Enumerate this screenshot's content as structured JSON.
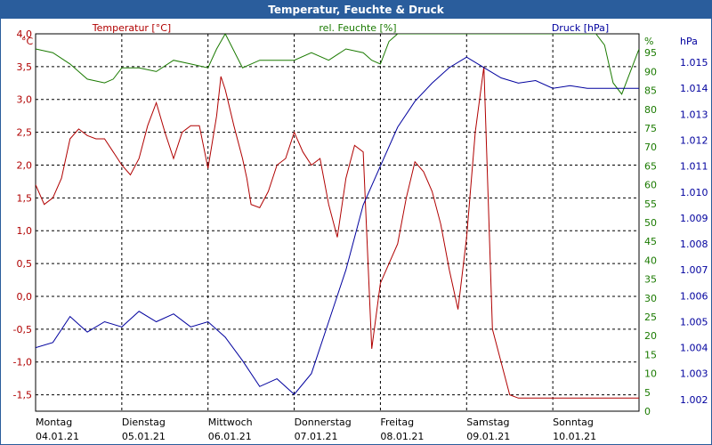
{
  "window": {
    "title": "Temperatur, Feuchte & Druck"
  },
  "colors": {
    "temperature": "#b00000",
    "humidity": "#1a7a00",
    "pressure": "#00009e",
    "titlebar": "#2a5d9c",
    "grid": "#000000"
  },
  "chart_data": {
    "type": "line",
    "title": "Temperatur, Feuchte & Druck",
    "x_ticks": [
      {
        "day": "Montag",
        "date": "04.01.21"
      },
      {
        "day": "Dienstag",
        "date": "05.01.21"
      },
      {
        "day": "Mittwoch",
        "date": "06.01.21"
      },
      {
        "day": "Donnerstag",
        "date": "07.01.21"
      },
      {
        "day": "Freitag",
        "date": "08.01.21"
      },
      {
        "day": "Samstag",
        "date": "09.01.21"
      },
      {
        "day": "Sonntag",
        "date": "10.01.21"
      }
    ],
    "xlim": [
      0,
      7
    ],
    "axes": {
      "temperature": {
        "label": "Temperatur [°C]",
        "unit": "°C",
        "ylim": [
          -1.75,
          4.0
        ],
        "ticks": [
          "4,0",
          "3,5",
          "3,0",
          "2,5",
          "2,0",
          "1,5",
          "1,0",
          "0,5",
          "0,0",
          "-0,5",
          "-1,0",
          "-1,5"
        ],
        "tick_values": [
          4.0,
          3.5,
          3.0,
          2.5,
          2.0,
          1.5,
          1.0,
          0.5,
          0.0,
          -0.5,
          -1.0,
          -1.5
        ]
      },
      "humidity": {
        "label": "rel. Feuchte [%]",
        "unit": "%",
        "ylim": [
          0,
          100
        ],
        "ticks": [
          "95",
          "90",
          "85",
          "80",
          "75",
          "70",
          "65",
          "60",
          "55",
          "50",
          "45",
          "40",
          "35",
          "30",
          "25",
          "20",
          "15",
          "10",
          "5",
          "0"
        ],
        "tick_values": [
          95,
          90,
          85,
          80,
          75,
          70,
          65,
          60,
          55,
          50,
          45,
          40,
          35,
          30,
          25,
          20,
          15,
          10,
          5,
          0
        ]
      },
      "pressure": {
        "label": "Druck [hPa]",
        "unit": "hPa",
        "ylim": [
          1001.55,
          1016.1
        ],
        "ticks": [
          "1.015",
          "1.014",
          "1.013",
          "1.012",
          "1.011",
          "1.010",
          "1.009",
          "1.008",
          "1.007",
          "1.006",
          "1.005",
          "1.004",
          "1.003",
          "1.002"
        ],
        "tick_values": [
          1015,
          1014,
          1013,
          1012,
          1011,
          1010,
          1009,
          1008,
          1007,
          1006,
          1005,
          1004,
          1003,
          1002
        ]
      }
    },
    "series": [
      {
        "name": "Temperatur [°C]",
        "axis": "temperature",
        "x": [
          0,
          0.1,
          0.2,
          0.3,
          0.4,
          0.5,
          0.6,
          0.7,
          0.8,
          0.9,
          1.0,
          1.1,
          1.2,
          1.3,
          1.4,
          1.5,
          1.6,
          1.7,
          1.8,
          1.9,
          2.0,
          2.1,
          2.15,
          2.2,
          2.3,
          2.4,
          2.45,
          2.5,
          2.6,
          2.7,
          2.8,
          2.9,
          3.0,
          3.1,
          3.2,
          3.3,
          3.4,
          3.5,
          3.6,
          3.7,
          3.8,
          3.9,
          4.0,
          4.1,
          4.2,
          4.3,
          4.4,
          4.5,
          4.6,
          4.7,
          4.8,
          4.9,
          5.0,
          5.1,
          5.2,
          5.3,
          5.4,
          5.5,
          5.6,
          5.7,
          5.8,
          5.9,
          6.0,
          6.1,
          6.2,
          6.3,
          6.4,
          6.5,
          6.6,
          6.7,
          6.8,
          6.9,
          7.0
        ],
        "values": [
          1.7,
          1.4,
          1.5,
          1.8,
          2.4,
          2.55,
          2.45,
          2.4,
          2.4,
          2.2,
          2.0,
          1.85,
          2.1,
          2.6,
          2.95,
          2.5,
          2.1,
          2.5,
          2.6,
          2.6,
          1.95,
          2.75,
          3.35,
          3.15,
          2.6,
          2.1,
          1.8,
          1.4,
          1.35,
          1.6,
          2.0,
          2.1,
          2.5,
          2.2,
          2.0,
          2.1,
          1.4,
          0.9,
          1.8,
          2.3,
          2.2,
          -0.8,
          0.2,
          0.5,
          0.8,
          1.5,
          2.05,
          1.9,
          1.6,
          1.1,
          0.4,
          -0.2,
          0.9,
          2.5,
          3.5,
          -0.5,
          -1.0,
          -1.5,
          -1.55,
          -1.55,
          -1.55,
          -1.55,
          -1.55,
          -1.55,
          -1.55,
          -1.55,
          -1.55,
          -1.55,
          -1.55,
          -1.55,
          -1.55,
          -1.55,
          -1.55
        ]
      },
      {
        "name": "rel. Feuchte [%]",
        "axis": "humidity",
        "x": [
          0,
          0.2,
          0.4,
          0.6,
          0.8,
          0.9,
          1.0,
          1.2,
          1.4,
          1.6,
          1.8,
          2.0,
          2.1,
          2.2,
          2.4,
          2.6,
          2.8,
          3.0,
          3.2,
          3.4,
          3.6,
          3.8,
          3.9,
          4.0,
          4.1,
          4.2,
          4.4,
          4.6,
          4.8,
          5.0,
          5.2,
          5.4,
          5.6,
          5.8,
          6.0,
          6.2,
          6.3,
          6.4,
          6.5,
          6.6,
          6.7,
          6.8,
          6.9,
          7.0
        ],
        "values": [
          96,
          95,
          92,
          88,
          87,
          88,
          91,
          91,
          90,
          93,
          92,
          91,
          96,
          100,
          91,
          93,
          93,
          93,
          95,
          93,
          96,
          95,
          93,
          92,
          98,
          100,
          100,
          100,
          100,
          100,
          100,
          100,
          100,
          100,
          100,
          100,
          100,
          100,
          100,
          97,
          87,
          84,
          90,
          96
        ]
      },
      {
        "name": "Druck [hPa]",
        "axis": "pressure",
        "x": [
          0,
          0.2,
          0.4,
          0.6,
          0.8,
          1.0,
          1.2,
          1.4,
          1.6,
          1.8,
          2.0,
          2.2,
          2.4,
          2.6,
          2.8,
          3.0,
          3.2,
          3.4,
          3.6,
          3.8,
          4.0,
          4.2,
          4.4,
          4.6,
          4.8,
          5.0,
          5.2,
          5.4,
          5.6,
          5.8,
          6.0,
          6.2,
          6.4,
          6.6,
          6.8,
          7.0
        ],
        "values": [
          1004.0,
          1004.2,
          1005.2,
          1004.6,
          1005.0,
          1004.8,
          1005.4,
          1005.0,
          1005.3,
          1004.8,
          1005.0,
          1004.4,
          1003.5,
          1002.5,
          1002.8,
          1002.2,
          1003.0,
          1005.0,
          1007.0,
          1009.5,
          1011.0,
          1012.5,
          1013.5,
          1014.2,
          1014.8,
          1015.2,
          1014.8,
          1014.4,
          1014.2,
          1014.3,
          1014.0,
          1014.1,
          1014.0,
          1014.0,
          1014.0,
          1014.0
        ]
      }
    ]
  }
}
